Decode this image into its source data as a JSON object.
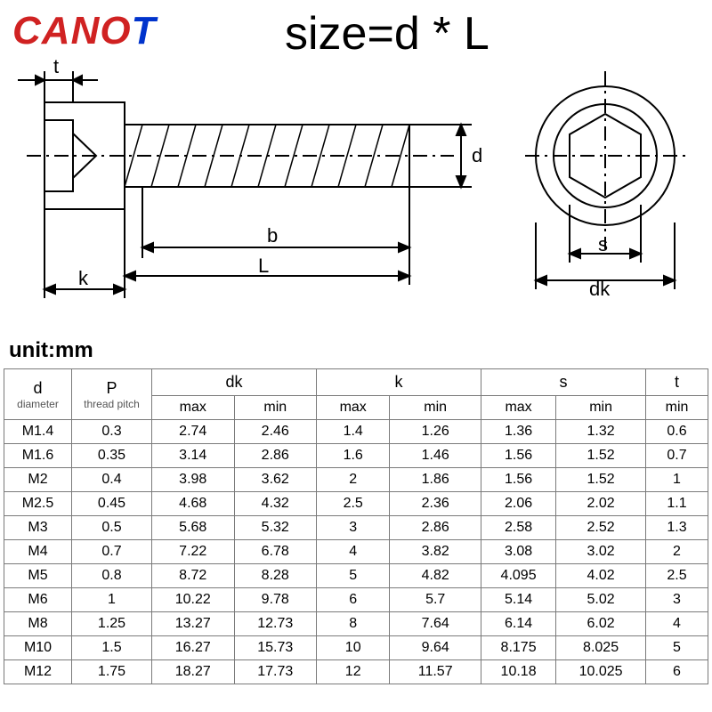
{
  "brand": {
    "text": "CANOT",
    "colors": [
      "#d02222",
      "#d02222",
      "#d02222",
      "#d02222",
      "#0033cc"
    ]
  },
  "title": "size=d * L",
  "unit_label": "unit:mm",
  "diagram": {
    "labels": {
      "t": "t",
      "k": "k",
      "L": "L",
      "b": "b",
      "d": "d",
      "s": "s",
      "dk": "dk"
    },
    "stroke": "#000000",
    "stroke_width": 2
  },
  "table": {
    "header_groups": [
      {
        "key": "d",
        "label": "d",
        "sub": "diameter"
      },
      {
        "key": "P",
        "label": "P",
        "sub": "thread pitch"
      },
      {
        "key": "dk",
        "label": "dk",
        "cols": [
          "max",
          "min"
        ]
      },
      {
        "key": "k",
        "label": "k",
        "cols": [
          "max",
          "min"
        ]
      },
      {
        "key": "s",
        "label": "s",
        "cols": [
          "max",
          "min"
        ]
      },
      {
        "key": "t",
        "label": "t",
        "cols": [
          "min"
        ]
      }
    ],
    "columns": [
      "d",
      "P",
      "dk_max",
      "dk_min",
      "k_max",
      "k_min",
      "s_max",
      "s_min",
      "t_min"
    ],
    "rows": [
      [
        "M1.4",
        "0.3",
        "2.74",
        "2.46",
        "1.4",
        "1.26",
        "1.36",
        "1.32",
        "0.6"
      ],
      [
        "M1.6",
        "0.35",
        "3.14",
        "2.86",
        "1.6",
        "1.46",
        "1.56",
        "1.52",
        "0.7"
      ],
      [
        "M2",
        "0.4",
        "3.98",
        "3.62",
        "2",
        "1.86",
        "1.56",
        "1.52",
        "1"
      ],
      [
        "M2.5",
        "0.45",
        "4.68",
        "4.32",
        "2.5",
        "2.36",
        "2.06",
        "2.02",
        "1.1"
      ],
      [
        "M3",
        "0.5",
        "5.68",
        "5.32",
        "3",
        "2.86",
        "2.58",
        "2.52",
        "1.3"
      ],
      [
        "M4",
        "0.7",
        "7.22",
        "6.78",
        "4",
        "3.82",
        "3.08",
        "3.02",
        "2"
      ],
      [
        "M5",
        "0.8",
        "8.72",
        "8.28",
        "5",
        "4.82",
        "4.095",
        "4.02",
        "2.5"
      ],
      [
        "M6",
        "1",
        "10.22",
        "9.78",
        "6",
        "5.7",
        "5.14",
        "5.02",
        "3"
      ],
      [
        "M8",
        "1.25",
        "13.27",
        "12.73",
        "8",
        "7.64",
        "6.14",
        "6.02",
        "4"
      ],
      [
        "M10",
        "1.5",
        "16.27",
        "15.73",
        "10",
        "9.64",
        "8.175",
        "8.025",
        "5"
      ],
      [
        "M12",
        "1.75",
        "18.27",
        "17.73",
        "12",
        "11.57",
        "10.18",
        "10.025",
        "6"
      ]
    ]
  },
  "style": {
    "background": "#ffffff",
    "border_color": "#7a7a7a",
    "body_fontsize": 16,
    "header_fontsize": 18,
    "sub_fontsize": 12,
    "title_fontsize": 52,
    "brand_fontsize": 44,
    "unit_fontsize": 24
  }
}
